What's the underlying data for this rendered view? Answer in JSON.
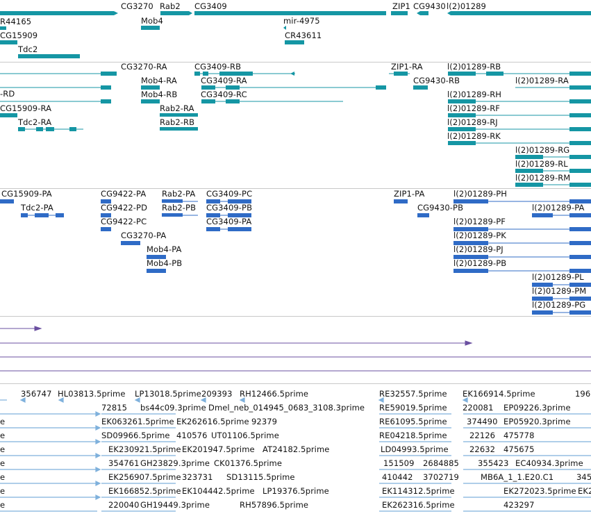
{
  "colors": {
    "gene": "#1596a4",
    "transcript": "#1596a4",
    "protein": "#2f6bc6",
    "other": "#6a4fa0",
    "est": "#7fb1dc",
    "divider": "#c8c8c8"
  },
  "tracks": {
    "genes": {
      "labels": [
        "R44165",
        "CG3270",
        "Rab2",
        "CG3409",
        "ZIP1",
        "CG9430",
        "l(2)01289",
        "CG15909",
        "Mob4",
        "mir-4975",
        "CR43611",
        "Tdc2"
      ]
    },
    "transcripts": {
      "labels": [
        "-RD",
        "CG3270-RA",
        "CG3409-RB",
        "ZIP1-RA",
        "l(2)01289-RB",
        "Mob4-RA",
        "CG3409-RA",
        "CG9430-RB",
        "l(2)01289-RA",
        "Mob4-RB",
        "CG3409-RC",
        "l(2)01289-RH",
        "CG15909-RA",
        "Rab2-RA",
        "l(2)01289-RF",
        "Tdc2-RA",
        "Rab2-RB",
        "l(2)01289-RJ",
        "l(2)01289-RK",
        "l(2)01289-RG",
        "l(2)01289-RL",
        "l(2)01289-RM"
      ]
    },
    "proteins": {
      "labels": [
        "CG15909-PA",
        "CG9422-PA",
        "Rab2-PA",
        "CG3409-PC",
        "ZIP1-PA",
        "l(2)01289-PH",
        "Tdc2-PA",
        "CG9422-PD",
        "Rab2-PB",
        "CG3409-PB",
        "CG9430-PB",
        "l(2)01289-PA",
        "CG9422-PC",
        "CG3409-PA",
        "l(2)01289-PF",
        "CG3270-PA",
        "l(2)01289-PK",
        "Mob4-PA",
        "l(2)01289-PJ",
        "Mob4-PB",
        "l(2)01289-PB",
        "l(2)01289-PL",
        "l(2)01289-PM",
        "l(2)01289-PG"
      ]
    },
    "ests": {
      "labels": [
        "356747",
        "HL03813.5prime",
        "LP13018.5prime",
        "209393",
        "RH12466.5prime",
        "RE32557.5prime",
        "EK166914.5prime",
        "196",
        "72815",
        "bs44c09.3prime",
        "Dmel_neb_014945_0683_3108.3prime",
        "RE59019.5prime",
        "220081",
        "EP09226.3prime",
        "e",
        "EK063261.5prime",
        "EK262616.5prime",
        "92379",
        "RE61095.5prime",
        "374490",
        "EP05920.3prime",
        "SD09966.5prime",
        "410576",
        "UT01106.5prime",
        "RE04218.5prime",
        "22126",
        "475778",
        "EK230921.5prime",
        "EK201947.5prime",
        "AT24182.5prime",
        "LD04993.5prime",
        "22632",
        "475675",
        "354761",
        "GH23829.3prime",
        "CK01376.5prime",
        "151509",
        "2684885",
        "355423",
        "EC40934.3prime",
        "EK256907.5prime",
        "323731",
        "SD13115.5prime",
        "410442",
        "3702719",
        "MB6A_1_1.E20.C1",
        "345",
        "EK166852.5prime",
        "EK104442.5prime",
        "LP19376.5prime",
        "EK114312.5prime",
        "EK272023.5prime",
        "EK2",
        "220040",
        "GH19449.3prime",
        "RH57896.5prime",
        "EK262316.5prime",
        "423297"
      ]
    }
  }
}
